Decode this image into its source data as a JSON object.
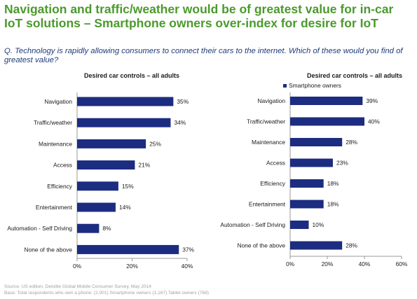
{
  "slide": {
    "title_line1": "Navigation and traffic/weather would be of greatest value for in-car",
    "title_line2": "IoT solutions – Smartphone owners over-index for desire for IoT",
    "question": "Q. Technology is rapidly allowing consumers to connect their cars to the internet. Which of these would you find of greatest value?",
    "source": "Source: US edition, Deloitte Global Mobile Consumer Survey, May 2014",
    "base": "Base: Total respondents who own a phone: (2,001) Smartphone owners (1,167) Tablet owners (769)"
  },
  "colors": {
    "title": "#4a9a2c",
    "question": "#1f3b7a",
    "bar": "#1c2c80",
    "axis": "#999999",
    "footer": "#a0a0a0"
  },
  "chart_data": [
    {
      "type": "bar",
      "orientation": "horizontal",
      "title": "Desired car controls – all adults",
      "categories": [
        "Navigation",
        "Traffic/weather",
        "Maintenance",
        "Access",
        "Efficiency",
        "Entertainment",
        "Automation - Self Driving",
        "None of the above"
      ],
      "values": [
        35,
        34,
        25,
        21,
        15,
        14,
        8,
        37
      ],
      "value_labels": [
        "35%",
        "34%",
        "25%",
        "21%",
        "15%",
        "14%",
        "8%",
        "37%"
      ],
      "xlim": [
        0,
        40
      ],
      "xticks": [
        0,
        20,
        40
      ],
      "xtick_labels": [
        "0%",
        "20%",
        "40%"
      ],
      "legend": null,
      "grid": false
    },
    {
      "type": "bar",
      "orientation": "horizontal",
      "title": "Desired car controls – all adults",
      "categories": [
        "Navigation",
        "Traffic/weather",
        "Maintenance",
        "Access",
        "Efficiency",
        "Entertainment",
        "Automation - Self Driving",
        "None of the above"
      ],
      "series": [
        {
          "name": "Smartphone owners",
          "values": [
            39,
            40,
            28,
            23,
            18,
            18,
            10,
            28
          ]
        }
      ],
      "value_labels": [
        "39%",
        "40%",
        "28%",
        "23%",
        "18%",
        "18%",
        "10%",
        "28%"
      ],
      "xlim": [
        0,
        60
      ],
      "xticks": [
        0,
        20,
        40,
        60
      ],
      "xtick_labels": [
        "0%",
        "20%",
        "40%",
        "60%"
      ],
      "legend": "top-left",
      "grid": false
    }
  ]
}
